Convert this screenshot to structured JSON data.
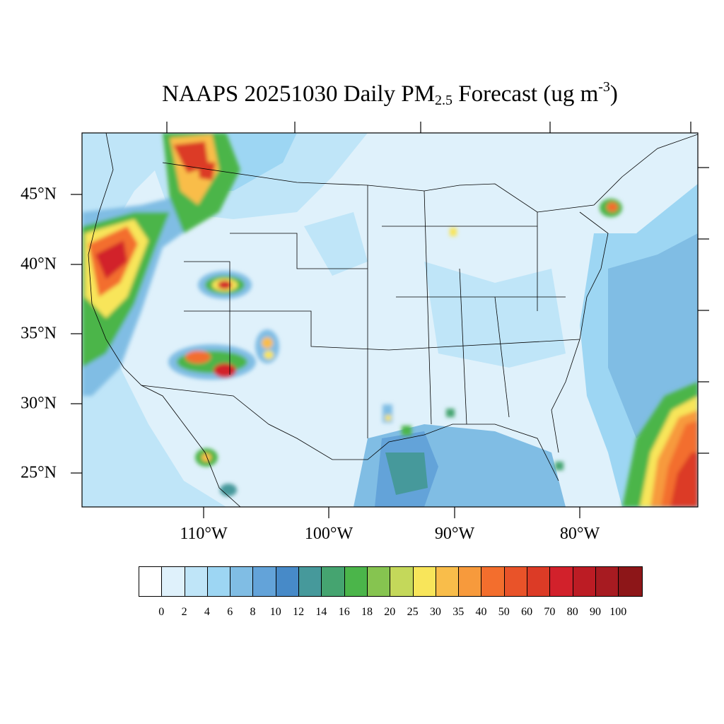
{
  "title": {
    "main": "NAAPS 20251030 Daily PM",
    "sub": "2.5",
    "tail": " Forecast (ug m",
    "sup": "-3",
    "close": ")"
  },
  "lat_labels": [
    "45°N",
    "40°N",
    "35°N",
    "30°N",
    "25°N"
  ],
  "lon_labels": [
    "110°W",
    "100°W",
    "90°W",
    "80°W"
  ],
  "colorbar": {
    "levels": [
      "0",
      "2",
      "4",
      "6",
      "8",
      "10",
      "12",
      "14",
      "16",
      "18",
      "20",
      "25",
      "30",
      "35",
      "40",
      "50",
      "60",
      "70",
      "80",
      "90",
      "100"
    ],
    "colors": [
      "#ffffff",
      "#dff1fb",
      "#bfe5f8",
      "#9dd6f3",
      "#80bde4",
      "#63a3d9",
      "#478ac8",
      "#46999b",
      "#45a470",
      "#4bb54a",
      "#86c450",
      "#c4d85a",
      "#f8e55a",
      "#f9bd4a",
      "#f79a3c",
      "#f36e2d",
      "#e95329",
      "#dc3b26",
      "#d2212b",
      "#bc1c24",
      "#a71b21",
      "#8d1618"
    ]
  },
  "colors": {
    "background_light": "#dff1fb",
    "ocean_blue": "#80bde4",
    "smoke_red": "#d2212b",
    "border": "#000000"
  }
}
